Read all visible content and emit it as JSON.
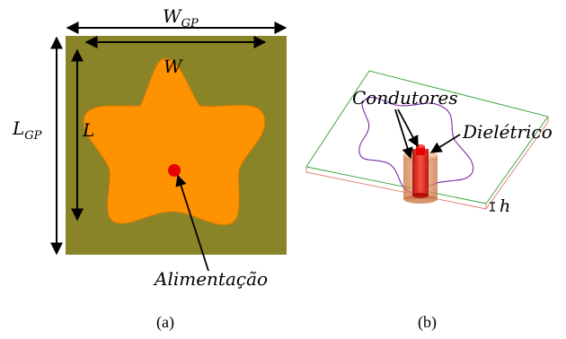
{
  "panel_a": {
    "label_wgp_main": "W",
    "label_wgp_sub": "GP",
    "label_lgp_main": "L",
    "label_lgp_sub": "GP",
    "label_w": "W",
    "label_l": "L",
    "label_feed": "Alimentação",
    "caption": "(a)",
    "colors": {
      "ground_plane": "#8a8428",
      "patch": "#ff9200",
      "patch_edge": "#d97a00",
      "feed": "#e80000",
      "arrow": "#000000"
    }
  },
  "panel_b": {
    "label_conductors": "Condutores",
    "label_dielectric": "Dielétrico",
    "label_h": "h",
    "caption": "(b)",
    "colors": {
      "substrate_edge_top": "#2e9e2e",
      "substrate_edge_front": "#d97a6a",
      "patch_outline": "#7a2aa8",
      "dielectric": "#e8a070",
      "conductor": "#e80000"
    }
  }
}
